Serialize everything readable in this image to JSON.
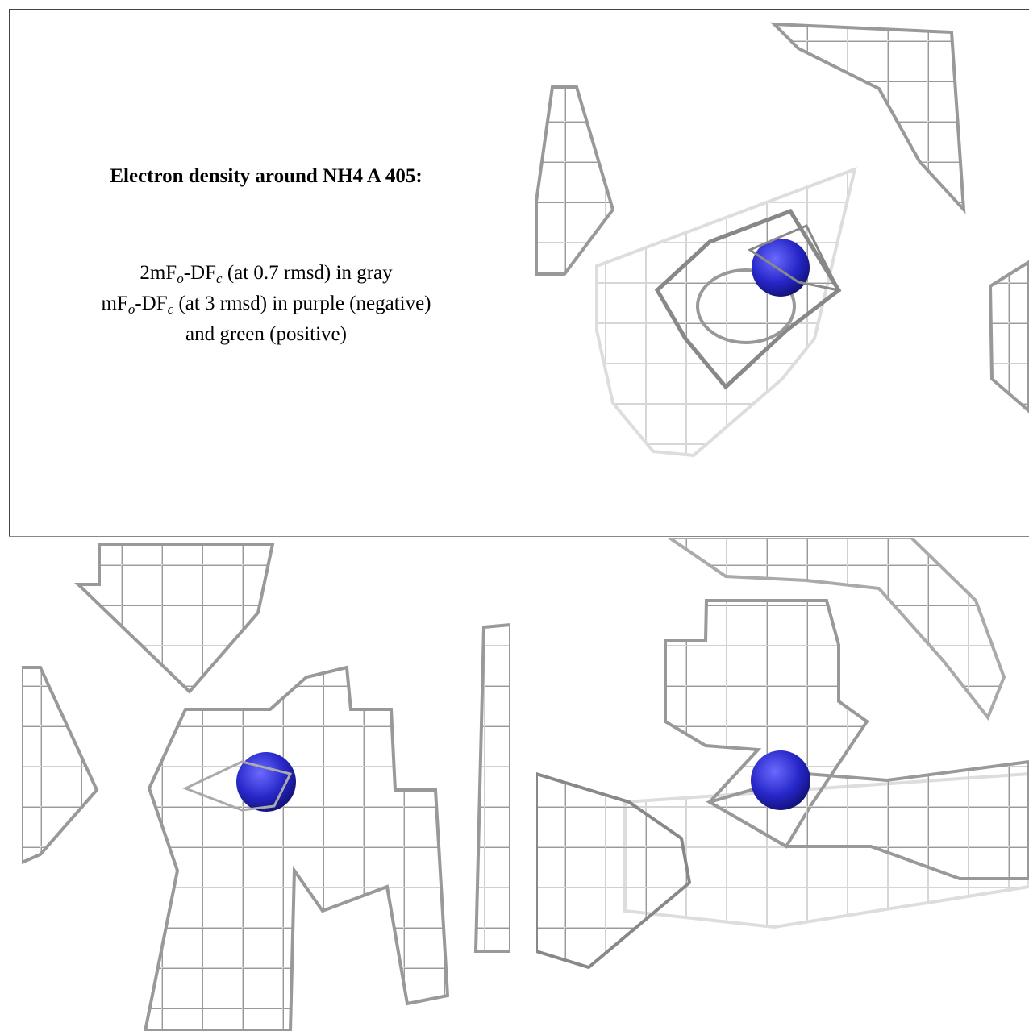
{
  "title": "Electron density around NH4 A 405:",
  "legend": [
    [
      "2mF",
      "o",
      "-DF",
      "c",
      " (at 0.7 rmsd) in gray"
    ],
    [
      "mF",
      "o",
      "-DF",
      "c",
      " (at 3 rmsd) in purple (negative)"
    ],
    [
      "and green (positive)"
    ]
  ]
}
